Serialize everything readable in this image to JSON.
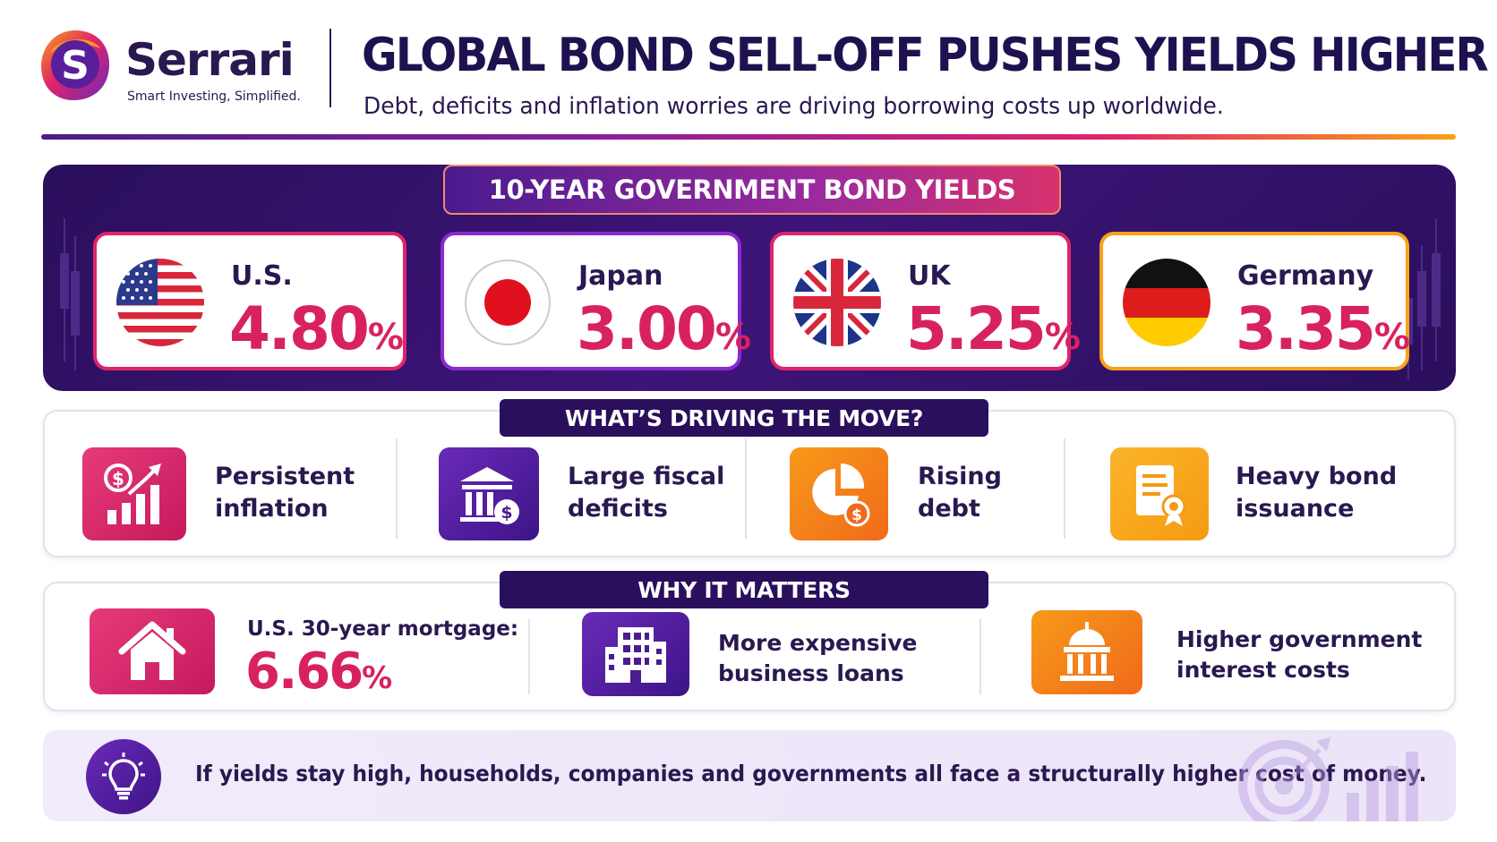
{
  "brand": {
    "name": "Serrari",
    "tagline": "Smart Investing, Simplified.",
    "logo_letter": "S"
  },
  "header": {
    "headline": "GLOBAL BOND SELL-OFF PUSHES YIELDS HIGHER",
    "subhead": "Debt, deficits and inflation worries are driving borrowing costs up worldwide."
  },
  "yields": {
    "title": "10-YEAR GOVERNMENT BOND YIELDS",
    "cards": [
      {
        "country": "U.S.",
        "value": "4.80",
        "unit": "%",
        "flag_icon": "us-flag-icon"
      },
      {
        "country": "Japan",
        "value": "3.00",
        "unit": "%",
        "flag_icon": "japan-flag-icon"
      },
      {
        "country": "UK",
        "value": "5.25",
        "unit": "%",
        "flag_icon": "uk-flag-icon"
      },
      {
        "country": "Germany",
        "value": "3.35",
        "unit": "%",
        "flag_icon": "germany-flag-icon"
      }
    ]
  },
  "drivers": {
    "title": "WHAT’S DRIVING THE MOVE?",
    "items": [
      {
        "line1": "Persistent",
        "line2": "inflation",
        "icon": "dollar-growth-chart-icon"
      },
      {
        "line1": "Large fiscal",
        "line2": "deficits",
        "icon": "bank-dollar-icon"
      },
      {
        "line1": "Rising",
        "line2": "debt",
        "icon": "pie-chart-dollar-icon"
      },
      {
        "line1": "Heavy bond",
        "line2": "issuance",
        "icon": "certificate-document-icon"
      }
    ]
  },
  "matters": {
    "title": "WHY IT MATTERS",
    "mortgage_label": "U.S. 30-year mortgage:",
    "mortgage_value": "6.66",
    "mortgage_unit": "%",
    "items": [
      {
        "line1": "More expensive",
        "line2": "business loans",
        "icon": "office-building-icon"
      },
      {
        "line1": "Higher government",
        "line2": "interest costs",
        "icon": "government-capitol-icon"
      }
    ],
    "home_icon": "house-icon"
  },
  "footer": {
    "text": "If yields stay high, households, companies and governments all face a structurally higher cost of money.",
    "icon": "lightbulb-icon"
  },
  "colors": {
    "navy": "#2a0f5c",
    "pink": "#d8225f",
    "purple": "#4a1d8c",
    "orange": "#f7a21a"
  }
}
